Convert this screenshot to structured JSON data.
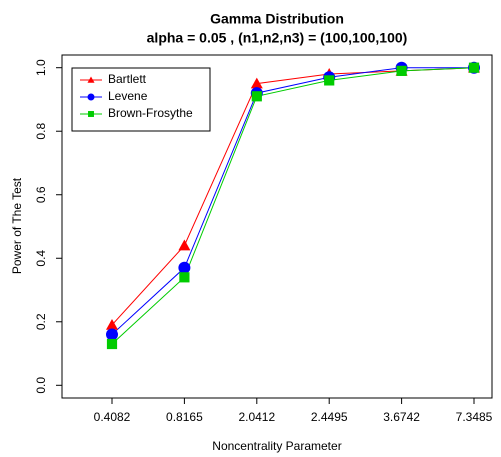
{
  "chart_data": {
    "type": "line",
    "title": "Gamma Distribution",
    "subtitle": "alpha = 0.05 , (n1,n2,n3) = (100,100,100)",
    "x_label": "Noncentrality Parameter",
    "y_label": "Power of The Test",
    "categories": [
      "0.4082",
      "0.8165",
      "2.0412",
      "2.4495",
      "3.6742",
      "7.3485"
    ],
    "series": [
      {
        "name": "Bartlett",
        "color": "#ff0000",
        "marker": "triangle",
        "values": [
          0.19,
          0.44,
          0.95,
          0.98,
          0.99,
          1.0
        ]
      },
      {
        "name": "Levene",
        "color": "#0000ff",
        "marker": "circle",
        "values": [
          0.16,
          0.37,
          0.92,
          0.97,
          1.0,
          1.0
        ]
      },
      {
        "name": "Brown-Frosythe",
        "color": "#00cc00",
        "marker": "square",
        "values": [
          0.13,
          0.34,
          0.91,
          0.96,
          0.99,
          1.0
        ]
      }
    ],
    "ylim": [
      -0.04,
      1.04
    ],
    "yticks": [
      {
        "value": 0,
        "label": "0.0"
      },
      0.2,
      0.4,
      0.6,
      0.8,
      {
        "value": 1,
        "label": "1.0"
      }
    ],
    "legend": "top-left"
  }
}
